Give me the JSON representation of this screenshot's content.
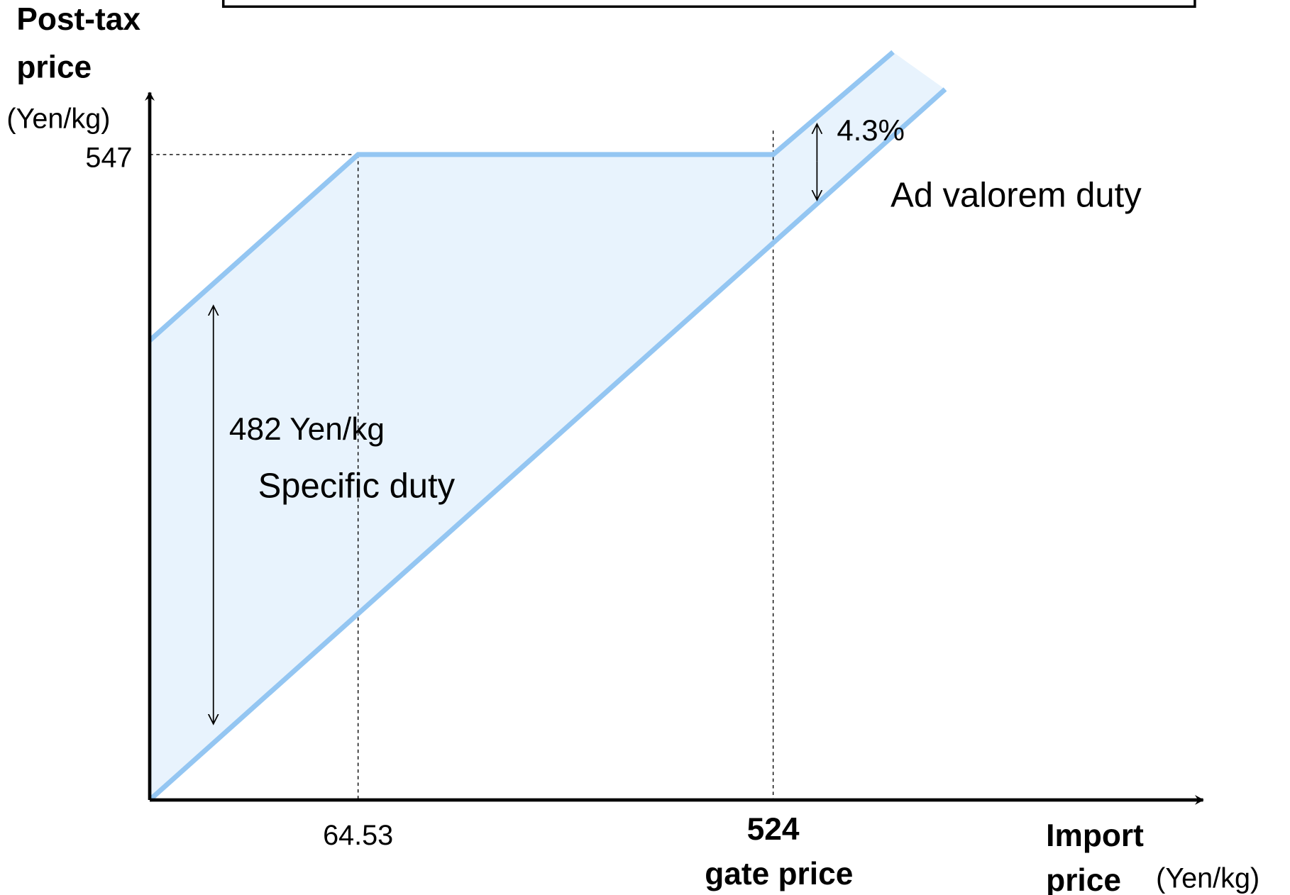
{
  "y_axis": {
    "title_line1": "Post-tax",
    "title_line2": "price",
    "unit": "(Yen/kg)",
    "tick": "547"
  },
  "x_axis": {
    "tick1": "64.53",
    "tick2": "524",
    "tick2_caption": "gate price",
    "title_line1": "Import",
    "title_line2": "price",
    "unit": "(Yen/kg)"
  },
  "annotations": {
    "ad_valorem_rate": "4.3%",
    "ad_valorem_label": "Ad valorem duty",
    "specific_amount": "482 Yen/kg",
    "specific_label": "Specific duty"
  }
}
